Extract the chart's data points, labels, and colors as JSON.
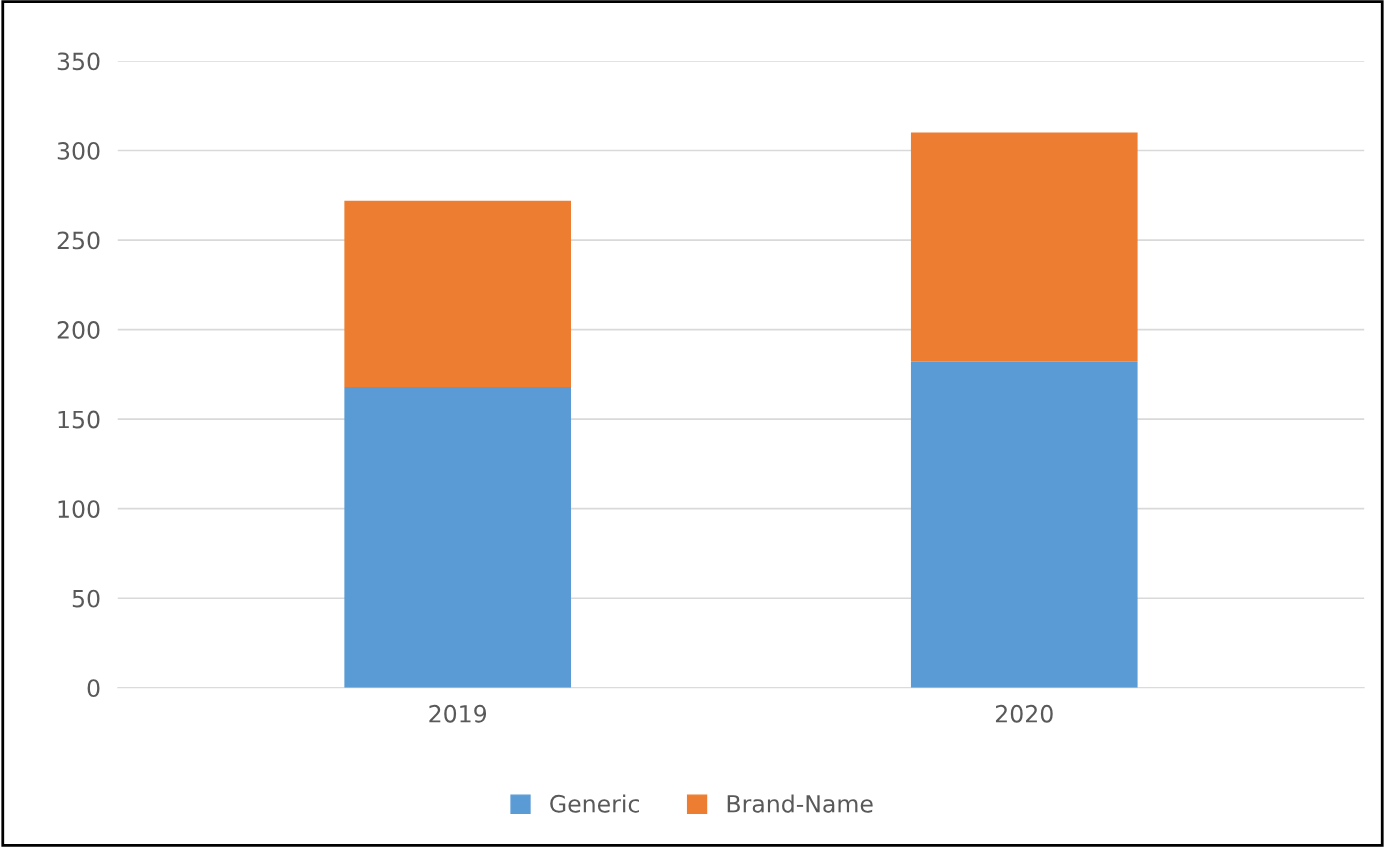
{
  "chart_data": {
    "type": "bar",
    "stacked": true,
    "categories": [
      "2019",
      "2020"
    ],
    "series": [
      {
        "name": "Generic",
        "color": "#5b9bd5",
        "values": [
          168,
          182
        ]
      },
      {
        "name": "Brand-Name",
        "color": "#ed7d31",
        "values": [
          104,
          128
        ]
      }
    ],
    "ylim": [
      0,
      350
    ],
    "yticks": [
      0,
      50,
      100,
      150,
      200,
      250,
      300,
      350
    ],
    "grid": "y",
    "legend": "bottom"
  }
}
